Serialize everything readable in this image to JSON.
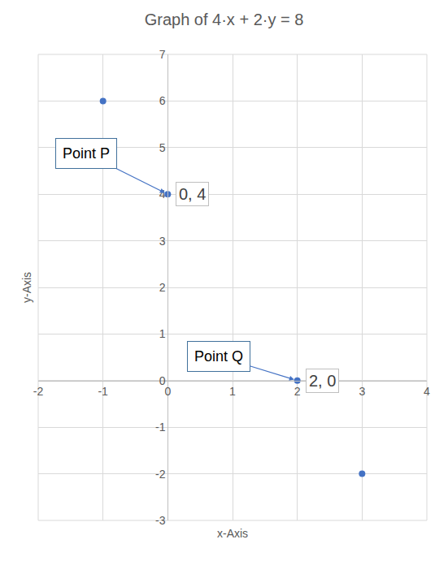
{
  "chart_data": {
    "type": "scatter",
    "title": "Graph of 4·x + 2·y = 8",
    "x_label": "x-Axis",
    "y_label": "y-Axis",
    "x": [
      -1,
      0,
      2,
      3
    ],
    "values": [
      6,
      4,
      0,
      -2
    ],
    "value_labels": [
      null,
      "0, 4",
      "2, 0",
      null
    ],
    "data_labels": true,
    "color": "#4472c4",
    "marker": "circle",
    "xlim": [
      -2,
      4
    ],
    "xticks": [
      -2,
      -1,
      0,
      1,
      2,
      3,
      4
    ],
    "ylim": [
      -3,
      7
    ],
    "yticks": [
      -3,
      -2,
      -1,
      0,
      1,
      2,
      3,
      4,
      5,
      6,
      7
    ],
    "grid": true,
    "annotations": [
      {
        "text": "Point P",
        "x": 0,
        "y": 4
      },
      {
        "text": "Point Q",
        "x": 2,
        "y": 0
      }
    ]
  }
}
